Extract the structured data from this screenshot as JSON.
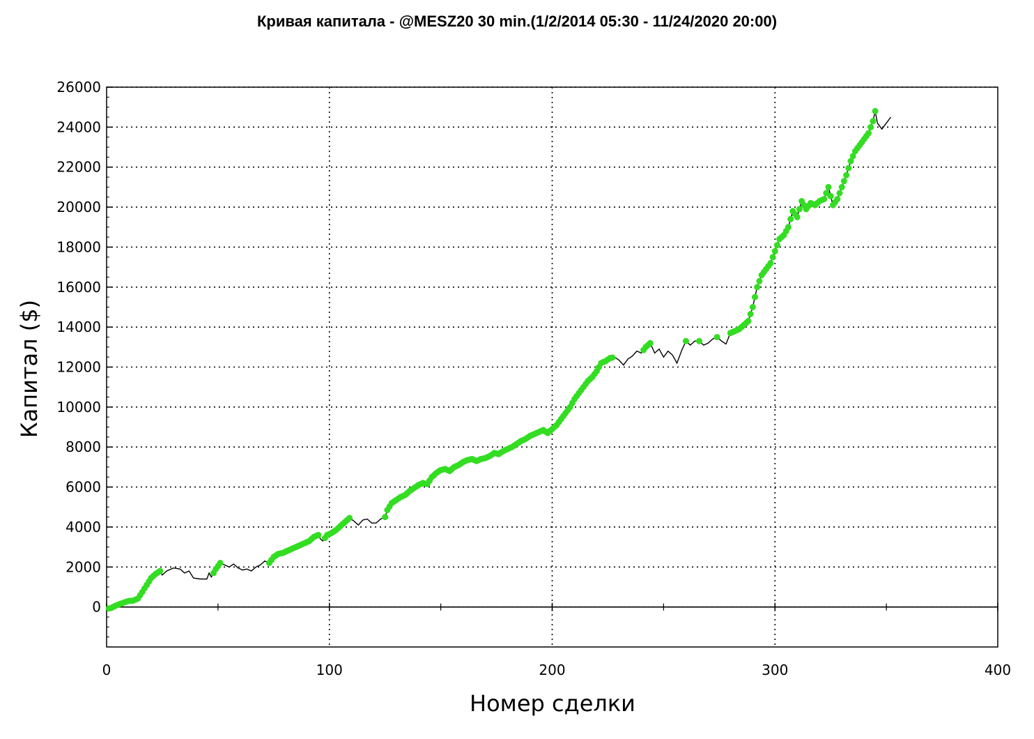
{
  "chart_data": {
    "type": "line",
    "title": "Кривая капитала - @MESZ20 30 min.(1/2/2014 05:30 - 11/24/2020 20:00)",
    "xlabel": "Номер сделки",
    "ylabel": "Капитал ($)",
    "xlim": [
      0,
      400
    ],
    "ylim": [
      -2000,
      26000
    ],
    "x_ticks": [
      "0",
      "100",
      "200",
      "300",
      "400"
    ],
    "y_ticks": [
      "26000",
      "24000",
      "22000",
      "20000",
      "18000",
      "16000",
      "14000",
      "12000",
      "10000",
      "8000",
      "6000",
      "4000",
      "2000",
      "0"
    ],
    "grid": true,
    "colors": {
      "line": "#000000",
      "highlight": "#33dd22",
      "grid": "#000000"
    },
    "series": [
      {
        "values": [
          [
            0,
            -100
          ],
          [
            2,
            -50
          ],
          [
            4,
            60
          ],
          [
            6,
            150
          ],
          [
            8,
            230
          ],
          [
            10,
            300
          ],
          [
            12,
            320
          ],
          [
            14,
            420
          ],
          [
            16,
            750
          ],
          [
            18,
            1100
          ],
          [
            20,
            1450
          ],
          [
            22,
            1650
          ],
          [
            24,
            1800
          ],
          [
            25,
            1600
          ],
          [
            27,
            1800
          ],
          [
            30,
            1950
          ],
          [
            33,
            1900
          ],
          [
            35,
            1700
          ],
          [
            37,
            1800
          ],
          [
            39,
            1450
          ],
          [
            42,
            1400
          ],
          [
            45,
            1400
          ],
          [
            46,
            1700
          ],
          [
            47,
            1500
          ],
          [
            49,
            1900
          ],
          [
            51,
            2200
          ],
          [
            53,
            2100
          ],
          [
            55,
            2000
          ],
          [
            57,
            2150
          ],
          [
            59,
            1950
          ],
          [
            61,
            1850
          ],
          [
            63,
            1900
          ],
          [
            65,
            1800
          ],
          [
            67,
            2000
          ],
          [
            69,
            2100
          ],
          [
            71,
            2300
          ],
          [
            73,
            2200
          ],
          [
            75,
            2500
          ],
          [
            77,
            2650
          ],
          [
            79,
            2700
          ],
          [
            81,
            2800
          ],
          [
            83,
            2900
          ],
          [
            85,
            3000
          ],
          [
            87,
            3100
          ],
          [
            89,
            3200
          ],
          [
            91,
            3300
          ],
          [
            93,
            3500
          ],
          [
            95,
            3600
          ],
          [
            96,
            3400
          ],
          [
            97,
            3300
          ],
          [
            99,
            3600
          ],
          [
            101,
            3700
          ],
          [
            103,
            3850
          ],
          [
            105,
            4050
          ],
          [
            107,
            4250
          ],
          [
            109,
            4450
          ],
          [
            111,
            4300
          ],
          [
            113,
            4100
          ],
          [
            115,
            4350
          ],
          [
            117,
            4400
          ],
          [
            119,
            4200
          ],
          [
            121,
            4200
          ],
          [
            123,
            4400
          ],
          [
            125,
            4500
          ],
          [
            126,
            4850
          ],
          [
            128,
            5200
          ],
          [
            130,
            5350
          ],
          [
            132,
            5500
          ],
          [
            134,
            5600
          ],
          [
            136,
            5800
          ],
          [
            138,
            5950
          ],
          [
            140,
            6100
          ],
          [
            142,
            6200
          ],
          [
            144,
            6150
          ],
          [
            146,
            6500
          ],
          [
            148,
            6700
          ],
          [
            150,
            6850
          ],
          [
            152,
            6900
          ],
          [
            154,
            6800
          ],
          [
            156,
            7000
          ],
          [
            158,
            7100
          ],
          [
            160,
            7250
          ],
          [
            162,
            7350
          ],
          [
            164,
            7400
          ],
          [
            166,
            7300
          ],
          [
            168,
            7400
          ],
          [
            170,
            7450
          ],
          [
            172,
            7550
          ],
          [
            174,
            7700
          ],
          [
            176,
            7650
          ],
          [
            178,
            7800
          ],
          [
            180,
            7900
          ],
          [
            182,
            8000
          ],
          [
            184,
            8150
          ],
          [
            186,
            8300
          ],
          [
            188,
            8400
          ],
          [
            190,
            8550
          ],
          [
            192,
            8650
          ],
          [
            194,
            8750
          ],
          [
            196,
            8850
          ],
          [
            198,
            8700
          ],
          [
            200,
            8900
          ],
          [
            202,
            9100
          ],
          [
            204,
            9400
          ],
          [
            206,
            9700
          ],
          [
            208,
            10000
          ],
          [
            210,
            10400
          ],
          [
            212,
            10700
          ],
          [
            214,
            11000
          ],
          [
            216,
            11300
          ],
          [
            218,
            11500
          ],
          [
            220,
            11800
          ],
          [
            222,
            12200
          ],
          [
            224,
            12300
          ],
          [
            226,
            12450
          ],
          [
            228,
            12500
          ],
          [
            230,
            12350
          ],
          [
            232,
            12100
          ],
          [
            234,
            12400
          ],
          [
            236,
            12550
          ],
          [
            238,
            12800
          ],
          [
            240,
            12700
          ],
          [
            242,
            13000
          ],
          [
            244,
            13200
          ],
          [
            246,
            12700
          ],
          [
            248,
            12900
          ],
          [
            250,
            12500
          ],
          [
            252,
            12800
          ],
          [
            254,
            12600
          ],
          [
            256,
            12200
          ],
          [
            258,
            12800
          ],
          [
            260,
            13300
          ],
          [
            262,
            13100
          ],
          [
            264,
            13300
          ],
          [
            266,
            13300
          ],
          [
            268,
            13100
          ],
          [
            270,
            13200
          ],
          [
            272,
            13400
          ],
          [
            274,
            13500
          ],
          [
            276,
            13300
          ],
          [
            278,
            13150
          ],
          [
            280,
            13700
          ],
          [
            282,
            13800
          ],
          [
            284,
            13900
          ],
          [
            286,
            14100
          ],
          [
            288,
            14300
          ],
          [
            290,
            15000
          ],
          [
            292,
            16000
          ],
          [
            294,
            16600
          ],
          [
            296,
            16900
          ],
          [
            298,
            17200
          ],
          [
            300,
            17800
          ],
          [
            302,
            18400
          ],
          [
            304,
            18600
          ],
          [
            306,
            19000
          ],
          [
            308,
            19800
          ],
          [
            310,
            19500
          ],
          [
            312,
            20300
          ],
          [
            314,
            19900
          ],
          [
            316,
            20200
          ],
          [
            318,
            20100
          ],
          [
            320,
            20300
          ],
          [
            322,
            20400
          ],
          [
            324,
            21000
          ],
          [
            326,
            20100
          ],
          [
            328,
            20400
          ],
          [
            330,
            21000
          ],
          [
            332,
            21600
          ],
          [
            334,
            22300
          ],
          [
            336,
            22800
          ],
          [
            338,
            23100
          ],
          [
            340,
            23400
          ],
          [
            342,
            23700
          ],
          [
            344,
            24300
          ],
          [
            345,
            24800
          ],
          [
            346,
            24200
          ],
          [
            348,
            23900
          ],
          [
            350,
            24200
          ],
          [
            352,
            24500
          ]
        ]
      }
    ],
    "highlighted_trade_ranges": [
      [
        1,
        24
      ],
      [
        48,
        51
      ],
      [
        73,
        95
      ],
      [
        98,
        109
      ],
      [
        125,
        145
      ],
      [
        146,
        200
      ],
      [
        201,
        227
      ],
      [
        241,
        244
      ],
      [
        260,
        260
      ],
      [
        266,
        266
      ],
      [
        274,
        274
      ],
      [
        280,
        345
      ]
    ]
  }
}
